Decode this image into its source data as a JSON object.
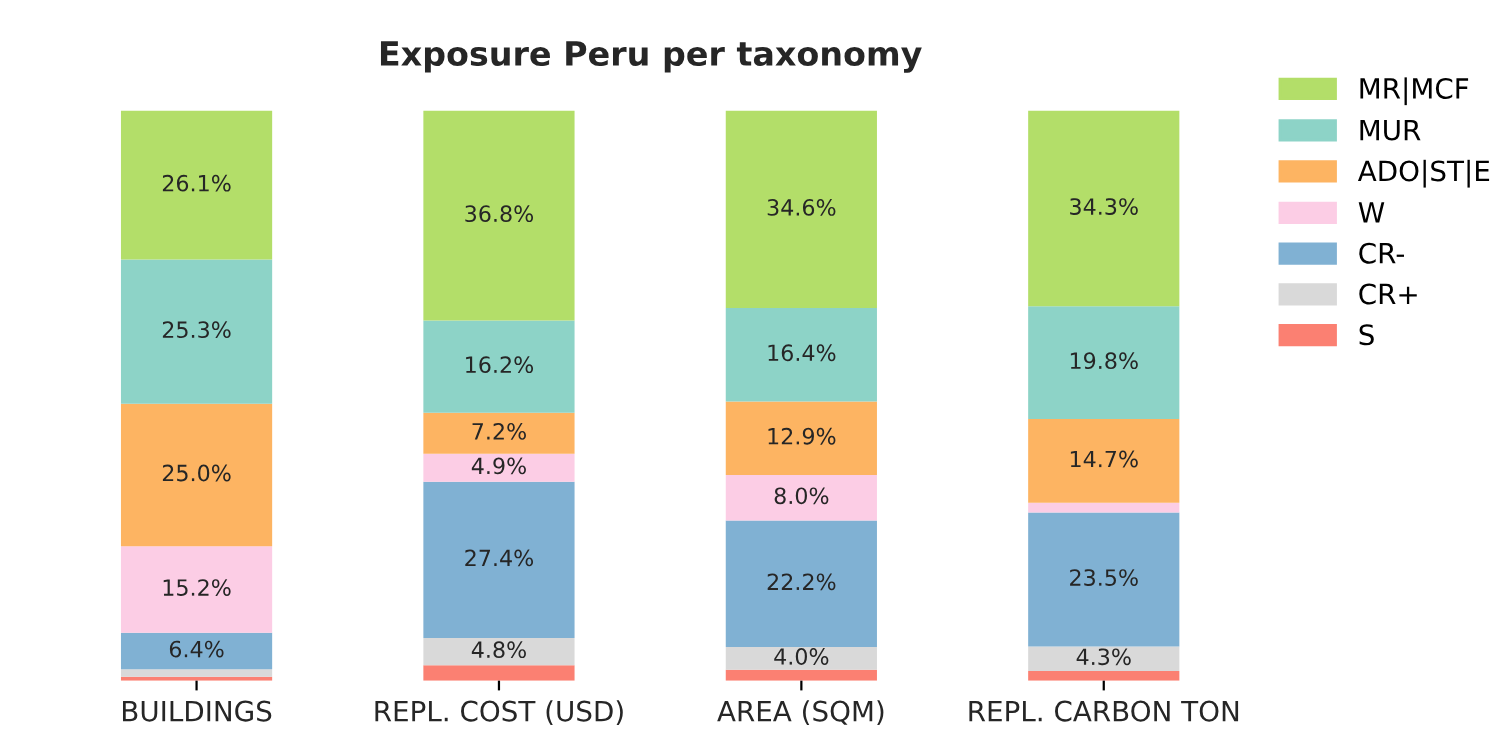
{
  "chart_data": {
    "type": "bar",
    "stacked": true,
    "title": "Exposure Peru per taxonomy",
    "categories": [
      "BUILDINGS",
      "REPL. COST (USD)",
      "AREA (SQM)",
      "REPL. CARBON TON"
    ],
    "series": [
      {
        "name": "S",
        "color": "#fb8072",
        "values": [
          0.7,
          2.7,
          1.9,
          1.7
        ],
        "value_labels": [
          null,
          null,
          null,
          null
        ]
      },
      {
        "name": "CR+",
        "color": "#d9d9d9",
        "values": [
          1.3,
          4.8,
          4.0,
          4.3
        ],
        "value_labels": [
          null,
          "4.8%",
          "4.0%",
          "4.3%"
        ]
      },
      {
        "name": "CR-",
        "color": "#80b1d3",
        "values": [
          6.4,
          27.4,
          22.2,
          23.5
        ],
        "value_labels": [
          "6.4%",
          "27.4%",
          "22.2%",
          "23.5%"
        ]
      },
      {
        "name": "W",
        "color": "#fccde5",
        "values": [
          15.2,
          4.9,
          8.0,
          1.7
        ],
        "value_labels": [
          "15.2%",
          "4.9%",
          "8.0%",
          null
        ]
      },
      {
        "name": "ADO|ST|E",
        "color": "#fdb462",
        "values": [
          25.0,
          7.2,
          12.9,
          14.7
        ],
        "value_labels": [
          "25.0%",
          "7.2%",
          "12.9%",
          "14.7%"
        ]
      },
      {
        "name": "MUR",
        "color": "#8dd3c7",
        "values": [
          25.3,
          16.2,
          16.4,
          19.8
        ],
        "value_labels": [
          "25.3%",
          "16.2%",
          "16.4%",
          "19.8%"
        ]
      },
      {
        "name": "MR|MCF",
        "color": "#b3de69",
        "values": [
          26.1,
          36.8,
          34.6,
          34.3
        ],
        "value_labels": [
          "26.1%",
          "36.8%",
          "34.6%",
          "34.3%"
        ]
      }
    ],
    "legend": "top right",
    "grid": false
  }
}
